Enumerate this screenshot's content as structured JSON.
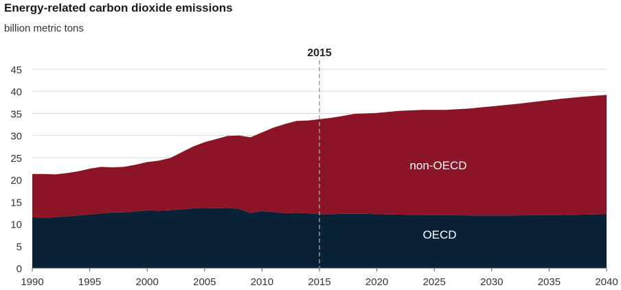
{
  "chart_data": {
    "type": "area",
    "title": "Energy-related carbon dioxide emissions",
    "subtitle": "billion metric tons",
    "xlabel": "",
    "ylabel": "",
    "xlim": [
      1990,
      2040
    ],
    "ylim": [
      0,
      45
    ],
    "x_ticks": [
      1990,
      1995,
      2000,
      2005,
      2010,
      2015,
      2020,
      2025,
      2030,
      2035,
      2040
    ],
    "y_ticks": [
      0,
      5,
      10,
      15,
      20,
      25,
      30,
      35,
      40,
      45
    ],
    "grid": "horizontal",
    "stacked": true,
    "annotation": {
      "x": 2015,
      "label": "2015"
    },
    "x": [
      1990,
      1991,
      1992,
      1993,
      1994,
      1995,
      1996,
      1997,
      1998,
      1999,
      2000,
      2001,
      2002,
      2003,
      2004,
      2005,
      2006,
      2007,
      2008,
      2009,
      2010,
      2011,
      2012,
      2013,
      2014,
      2015,
      2016,
      2017,
      2018,
      2019,
      2020,
      2022,
      2024,
      2026,
      2028,
      2030,
      2032,
      2034,
      2036,
      2038,
      2040
    ],
    "series": [
      {
        "name": "OECD",
        "color": "#0a2236",
        "values": [
          11.5,
          11.4,
          11.5,
          11.7,
          11.9,
          12.1,
          12.4,
          12.6,
          12.6,
          12.8,
          13.1,
          13.0,
          13.1,
          13.3,
          13.5,
          13.6,
          13.5,
          13.6,
          13.4,
          12.5,
          12.9,
          12.7,
          12.4,
          12.5,
          12.4,
          12.2,
          12.2,
          12.3,
          12.3,
          12.3,
          12.2,
          12.1,
          12.0,
          12.0,
          11.9,
          11.9,
          11.9,
          12.0,
          12.0,
          12.1,
          12.2
        ]
      },
      {
        "name": "non-OECD",
        "color": "#8b1527",
        "values": [
          9.8,
          9.9,
          9.7,
          9.8,
          10.0,
          10.4,
          10.5,
          10.2,
          10.3,
          10.6,
          10.9,
          11.3,
          11.8,
          12.9,
          14.0,
          14.9,
          15.7,
          16.3,
          16.6,
          17.1,
          17.8,
          19.1,
          20.2,
          20.8,
          21.0,
          21.5,
          21.8,
          22.1,
          22.6,
          22.7,
          22.9,
          23.5,
          23.8,
          23.8,
          24.2,
          24.7,
          25.2,
          25.7,
          26.3,
          26.7,
          27.0
        ]
      }
    ],
    "series_labels": [
      "OECD",
      "non-OECD"
    ]
  }
}
